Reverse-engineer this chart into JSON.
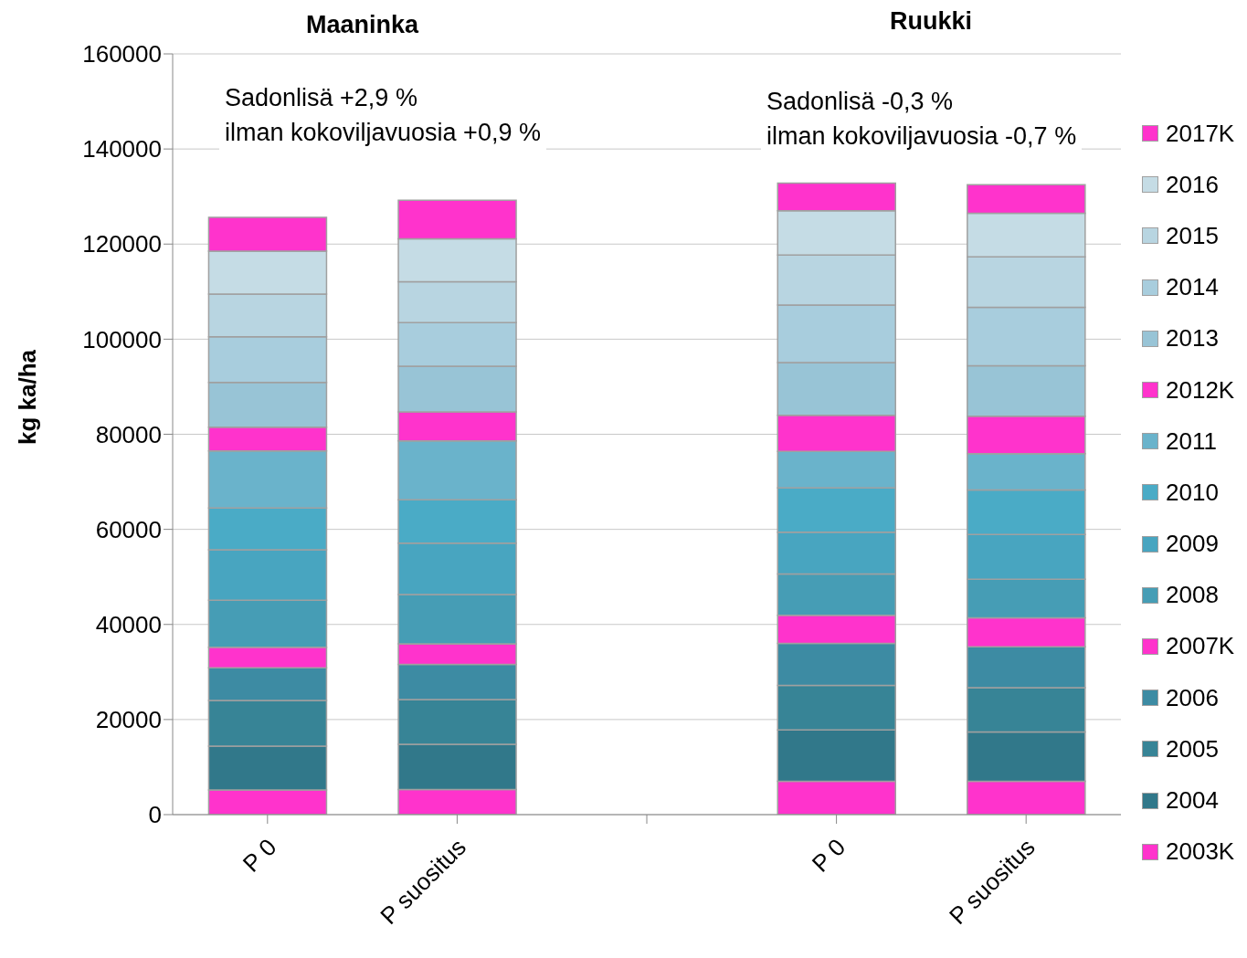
{
  "chart_data": {
    "type": "bar",
    "stacked": true,
    "ylabel": "kg ka/ha",
    "categories": [
      "P 0",
      "P suositus",
      null,
      "P 0",
      "P suositus"
    ],
    "ylim": [
      0,
      160000
    ],
    "yticks": [
      0,
      20000,
      40000,
      60000,
      80000,
      100000,
      120000,
      140000,
      160000
    ],
    "grid": "y",
    "legend": "right",
    "annotations": [
      "Maaninka",
      "Ruukki",
      "Sadonlisä +2,9 %\nilman kokoviljavuosia +0,9 %",
      "Sadonlisä -0,3 %\nilman kokoviljavuosia -0,7 %"
    ],
    "series": [
      {
        "name": "2003K",
        "color": "#ff33cc",
        "values": [
          5200,
          5300,
          null,
          7000,
          7000
        ]
      },
      {
        "name": "2004",
        "color": "#31788a",
        "values": [
          9200,
          9500,
          null,
          10800,
          10400
        ]
      },
      {
        "name": "2005",
        "color": "#378496",
        "values": [
          9600,
          9400,
          null,
          9400,
          9300
        ]
      },
      {
        "name": "2006",
        "color": "#3d8ba3",
        "values": [
          6900,
          7400,
          null,
          8800,
          8600
        ]
      },
      {
        "name": "2007K",
        "color": "#ff33cc",
        "values": [
          4300,
          4300,
          null,
          5900,
          6100
        ]
      },
      {
        "name": "2008",
        "color": "#469db5",
        "values": [
          9900,
          10400,
          null,
          8700,
          8100
        ]
      },
      {
        "name": "2009",
        "color": "#48a5c0",
        "values": [
          10600,
          10800,
          null,
          8800,
          9400
        ]
      },
      {
        "name": "2010",
        "color": "#4aabc6",
        "values": [
          8800,
          9100,
          null,
          9300,
          9400
        ]
      },
      {
        "name": "2011",
        "color": "#6ab3cb",
        "values": [
          12000,
          12400,
          null,
          7700,
          7600
        ]
      },
      {
        "name": "2012K",
        "color": "#ff33cc",
        "values": [
          5000,
          6100,
          null,
          7600,
          7900
        ]
      },
      {
        "name": "2013",
        "color": "#98c4d6",
        "values": [
          9400,
          9600,
          null,
          11100,
          10600
        ]
      },
      {
        "name": "2014",
        "color": "#a8cddd",
        "values": [
          9600,
          9200,
          null,
          12100,
          12300
        ]
      },
      {
        "name": "2015",
        "color": "#b8d5e1",
        "values": [
          9000,
          8600,
          null,
          10500,
          10600
        ]
      },
      {
        "name": "2016",
        "color": "#c5dce5",
        "values": [
          9000,
          9000,
          null,
          9300,
          9200
        ]
      },
      {
        "name": "2017K",
        "color": "#ff33cc",
        "values": [
          7100,
          8100,
          null,
          5800,
          6000
        ]
      }
    ]
  }
}
